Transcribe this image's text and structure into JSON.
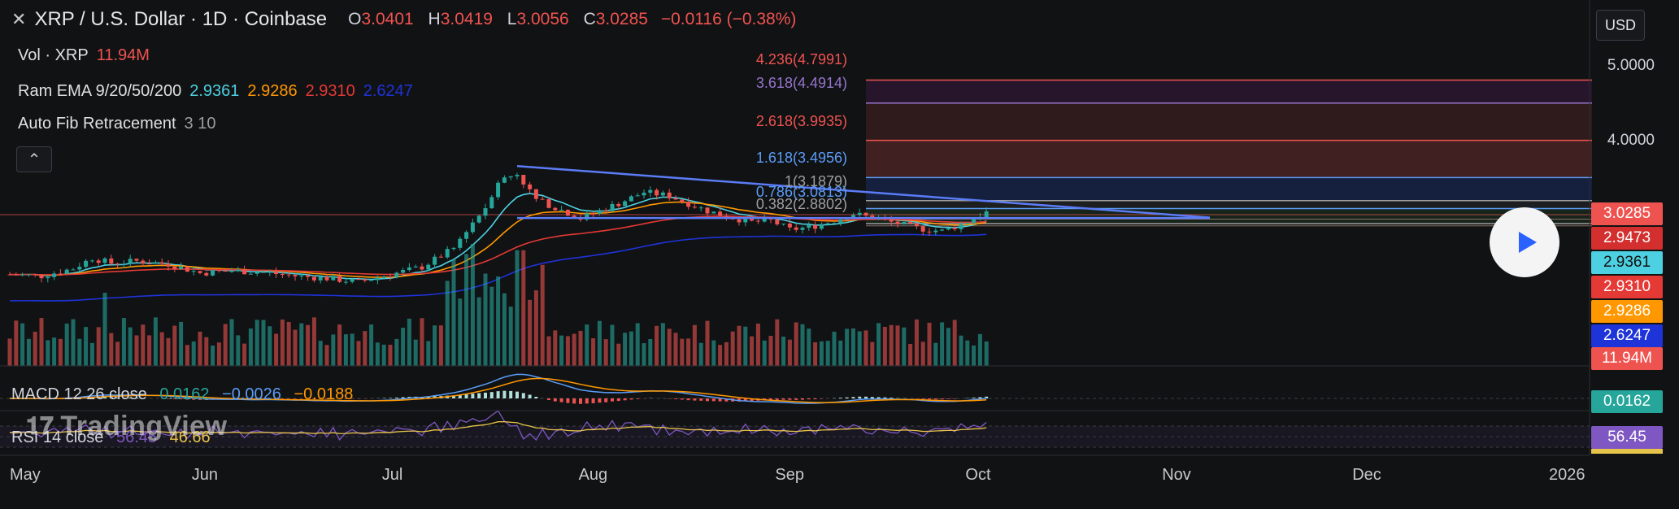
{
  "header": {
    "title": "XRP / U.S. Dollar · 1D · Coinbase",
    "ohlc": [
      {
        "key": "O",
        "value": "3.0401"
      },
      {
        "key": "H",
        "value": "3.0419"
      },
      {
        "key": "L",
        "value": "3.0056"
      },
      {
        "key": "C",
        "value": "3.0285"
      }
    ],
    "change": "−0.0116 (−0.38%)"
  },
  "indicators": {
    "vol": {
      "label": "Vol · XRP",
      "value": "11.94M"
    },
    "ema": {
      "label": "Ram EMA 9/20/50/200",
      "values": [
        "2.9361",
        "2.9286",
        "2.9310",
        "2.6247"
      ]
    },
    "fib": {
      "label": "Auto Fib Retracement",
      "params": "3 10"
    }
  },
  "controls": {
    "currency": "USD",
    "collapse_icon": "chevron-up-icon",
    "play_icon": "play-icon"
  },
  "fib_levels": [
    {
      "text": "4.236(4.7991)",
      "color": "#ef5350"
    },
    {
      "text": "3.618(4.4914)",
      "color": "#9575cd"
    },
    {
      "text": "2.618(3.9935)",
      "color": "#ef5350"
    },
    {
      "text": "1.618(3.4956)",
      "color": "#5b9cf6"
    },
    {
      "text": "1(3.1879)",
      "color": "#9e9e9e"
    },
    {
      "text": "0.786(3.0813)",
      "color": "#5b9cf6"
    },
    {
      "text": "0.382(2.8802)",
      "color": "#9e9e9e"
    }
  ],
  "price_axis": {
    "ticks": [
      "5.0000",
      "4.0000"
    ]
  },
  "price_tags": [
    {
      "text": "3.0285",
      "color": "#ef5350"
    },
    {
      "text": "2.9473",
      "color": "#d32f2f"
    },
    {
      "text": "2.9361",
      "color": "#4dd0e1",
      "fg": "#111"
    },
    {
      "text": "2.9310",
      "color": "#e53935"
    },
    {
      "text": "2.9286",
      "color": "#ff9800"
    },
    {
      "text": "2.6247",
      "color": "#1e33d8"
    },
    {
      "text": "11.94M",
      "color": "#ef5350"
    },
    {
      "text": "0.0162",
      "color": "#26a69a"
    },
    {
      "text": "56.45",
      "color": "#7e57c2"
    }
  ],
  "macd": {
    "label": "MACD 12 26 close",
    "values": [
      {
        "v": "0.0162",
        "c": "#26a69a"
      },
      {
        "v": "−0.0026",
        "c": "#5b9cf6"
      },
      {
        "v": "−0.0188",
        "c": "#ff9800"
      }
    ]
  },
  "rsi": {
    "label": "RSI 14 close",
    "values": [
      {
        "v": "56.45",
        "c": "#7e57c2"
      },
      {
        "v": "46.66",
        "c": "#e6c34a"
      }
    ]
  },
  "watermark": "TradingView",
  "months": [
    {
      "label": "May",
      "x": 0
    },
    {
      "label": "Jun",
      "x": 31
    },
    {
      "label": "Jul",
      "x": 61
    },
    {
      "label": "Aug",
      "x": 92
    },
    {
      "label": "Sep",
      "x": 123
    },
    {
      "label": "Oct",
      "x": 153
    },
    {
      "label": "Nov",
      "x": 184
    },
    {
      "label": "Dec",
      "x": 214
    },
    {
      "label": "2026",
      "x": 245
    }
  ],
  "chart_data": {
    "type": "candlestick",
    "symbol": "XRP/USD",
    "interval": "1D",
    "x_unit": "days since May 1",
    "close_series": [
      [
        0,
        2.2
      ],
      [
        5,
        2.18
      ],
      [
        10,
        2.28
      ],
      [
        13,
        2.42
      ],
      [
        16,
        2.35
      ],
      [
        20,
        2.38
      ],
      [
        25,
        2.34
      ],
      [
        30,
        2.22
      ],
      [
        35,
        2.25
      ],
      [
        40,
        2.23
      ],
      [
        45,
        2.18
      ],
      [
        50,
        2.15
      ],
      [
        55,
        2.1
      ],
      [
        60,
        2.2
      ],
      [
        65,
        2.3
      ],
      [
        70,
        2.55
      ],
      [
        72,
        2.8
      ],
      [
        75,
        3.1
      ],
      [
        77,
        3.45
      ],
      [
        80,
        3.55
      ],
      [
        83,
        3.2
      ],
      [
        86,
        3.1
      ],
      [
        90,
        2.95
      ],
      [
        93,
        3.05
      ],
      [
        96,
        3.15
      ],
      [
        100,
        3.3
      ],
      [
        104,
        3.25
      ],
      [
        107,
        3.15
      ],
      [
        110,
        3.05
      ],
      [
        113,
        2.98
      ],
      [
        117,
        2.9
      ],
      [
        120,
        2.92
      ],
      [
        123,
        2.8
      ],
      [
        126,
        2.83
      ],
      [
        130,
        2.92
      ],
      [
        133,
        3.01
      ],
      [
        136,
        2.96
      ],
      [
        140,
        2.88
      ],
      [
        143,
        2.82
      ],
      [
        147,
        2.78
      ],
      [
        150,
        2.87
      ],
      [
        152,
        2.95
      ],
      [
        154,
        3.03
      ]
    ],
    "fib_levels": [
      {
        "ratio": 4.236,
        "price": 4.7991
      },
      {
        "ratio": 3.618,
        "price": 4.4914
      },
      {
        "ratio": 2.618,
        "price": 3.9935
      },
      {
        "ratio": 1.618,
        "price": 3.4956
      },
      {
        "ratio": 1,
        "price": 3.1879
      },
      {
        "ratio": 0.786,
        "price": 3.0813
      },
      {
        "ratio": 0.382,
        "price": 2.8802
      }
    ],
    "ema": {
      "9": 2.9361,
      "20": 2.9286,
      "50": 2.931,
      "200": 2.6247
    },
    "volume_last": "11.94M",
    "macd": {
      "hist": 0.0162,
      "macd": -0.0026,
      "signal": -0.0188
    },
    "rsi": {
      "value": 56.45,
      "ma": 46.66
    }
  }
}
